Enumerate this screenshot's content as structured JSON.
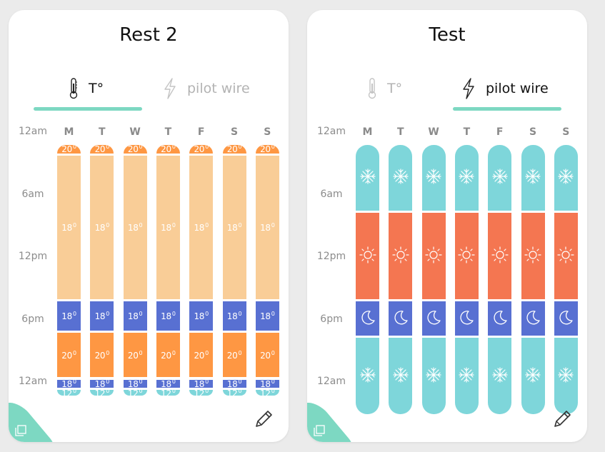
{
  "colors": {
    "orange": "#fe9743",
    "peach": "#f9cd97",
    "blue": "#5870d2",
    "teal": "#7ed6da",
    "red": "#f47651",
    "tab_underline": "#7dd8c2"
  },
  "days": [
    "M",
    "T",
    "W",
    "T",
    "F",
    "S",
    "S"
  ],
  "time_labels": [
    "12am",
    "6am",
    "12pm",
    "6pm",
    "12am"
  ],
  "cards": [
    {
      "title": "Rest 2",
      "tabs": [
        {
          "label": "T°",
          "icon": "thermometer-icon",
          "active": true
        },
        {
          "label": "pilot wire",
          "icon": "lightning-icon",
          "active": false
        }
      ],
      "mode": "temperature",
      "schedule": [
        {
          "start": 0,
          "end": 1,
          "color": "#fe9743",
          "label": "20.0"
        },
        {
          "start": 1,
          "end": 15,
          "color": "#f9cd97",
          "label": "18.0"
        },
        {
          "start": 15,
          "end": 18,
          "color": "#5870d2",
          "label": "18.0"
        },
        {
          "start": 18,
          "end": 22.5,
          "color": "#fe9743",
          "label": "20.0"
        },
        {
          "start": 22.5,
          "end": 23.5,
          "color": "#5870d2",
          "label": "18.0"
        },
        {
          "start": 23.5,
          "end": 24,
          "color": "#7ed6da",
          "label": "12.0"
        }
      ]
    },
    {
      "title": "Test",
      "tabs": [
        {
          "label": "T°",
          "icon": "thermometer-icon",
          "active": false
        },
        {
          "label": "pilot wire",
          "icon": "lightning-icon",
          "active": true
        }
      ],
      "mode": "pilot",
      "schedule": [
        {
          "start": 0,
          "end": 6.5,
          "color": "#7ed6da",
          "icon": "snowflake-icon"
        },
        {
          "start": 6.5,
          "end": 15,
          "color": "#f47651",
          "icon": "sun-icon"
        },
        {
          "start": 15,
          "end": 18.5,
          "color": "#5870d2",
          "icon": "moon-icon"
        },
        {
          "start": 18.5,
          "end": 26,
          "color": "#7ed6da",
          "icon": "snowflake-icon"
        }
      ]
    }
  ]
}
